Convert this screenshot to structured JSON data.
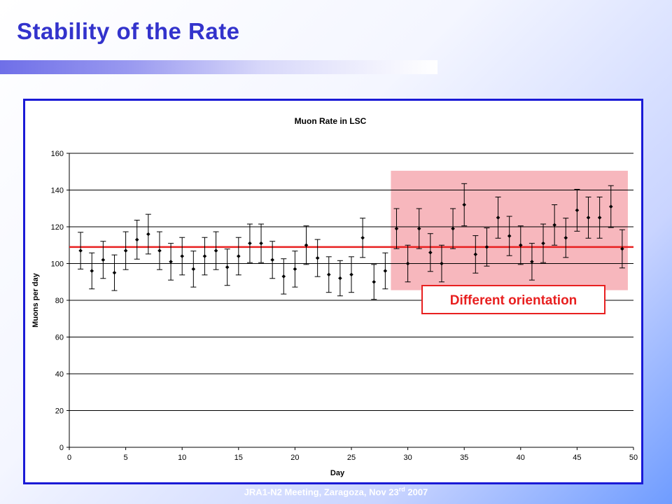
{
  "slide": {
    "title": "Stability of the Rate",
    "footer_main": "JRA1-N2 Meeting, Zaragoza, Nov 23",
    "footer_sup": "rd",
    "footer_year": " 2007"
  },
  "colors": {
    "title": "#3333cc",
    "frame_border": "#1a1ad6",
    "mean_line": "#e82020",
    "highlight_fill": "#f7b7bd",
    "annotation_border": "#e82020",
    "annotation_text": "#e82020",
    "points": "#000000"
  },
  "chart_data": {
    "type": "scatter",
    "title": "Muon Rate in LSC",
    "xlabel": "Day",
    "ylabel": "Muons per day",
    "xlim": [
      0,
      50
    ],
    "ylim": [
      0,
      160
    ],
    "xticks": [
      0,
      5,
      10,
      15,
      20,
      25,
      30,
      35,
      40,
      45,
      50
    ],
    "yticks": [
      0,
      20,
      40,
      60,
      80,
      100,
      120,
      140,
      160
    ],
    "grid": "horizontal",
    "legend": "none",
    "series": [
      {
        "x": [
          1,
          2,
          3,
          4,
          5,
          6,
          7,
          8,
          9,
          10,
          11,
          12,
          13,
          14,
          15,
          16,
          17,
          18,
          19,
          20,
          21,
          22,
          23,
          24,
          25,
          26,
          27,
          28,
          29,
          30,
          31,
          32,
          33,
          34,
          35,
          36,
          37,
          38,
          39,
          40,
          41,
          42,
          43,
          44,
          45,
          46,
          47,
          48,
          49
        ],
        "y": [
          107,
          96,
          102,
          95,
          107,
          113,
          116,
          107,
          101,
          104,
          97,
          104,
          107,
          98,
          104,
          111,
          111,
          102,
          93,
          97,
          110,
          103,
          94,
          92,
          94,
          114,
          90,
          96,
          119,
          100,
          119,
          106,
          100,
          119,
          132,
          105,
          109,
          125,
          115,
          110,
          101,
          111,
          121,
          114,
          129,
          125,
          125,
          131,
          108
        ],
        "error": [
          10,
          9.8,
          10.1,
          9.7,
          10.3,
          10.6,
          10.8,
          10.3,
          10,
          10.2,
          9.8,
          10.2,
          10.3,
          9.9,
          10.2,
          10.5,
          10.5,
          10.1,
          9.6,
          9.8,
          10.5,
          10.1,
          9.7,
          9.6,
          9.7,
          10.7,
          9.5,
          9.8,
          10.9,
          10,
          10.9,
          10.3,
          10,
          10.9,
          11.5,
          10.2,
          10.4,
          11.2,
          10.7,
          10.5,
          10,
          10.5,
          11,
          10.7,
          11.4,
          11.2,
          11.2,
          11.4,
          10.4
        ]
      }
    ],
    "mean_line": 109,
    "highlight": {
      "x_range": [
        28.5,
        49.5
      ],
      "y_range": [
        85.5,
        150.5
      ]
    },
    "annotation": "Different orientation"
  }
}
